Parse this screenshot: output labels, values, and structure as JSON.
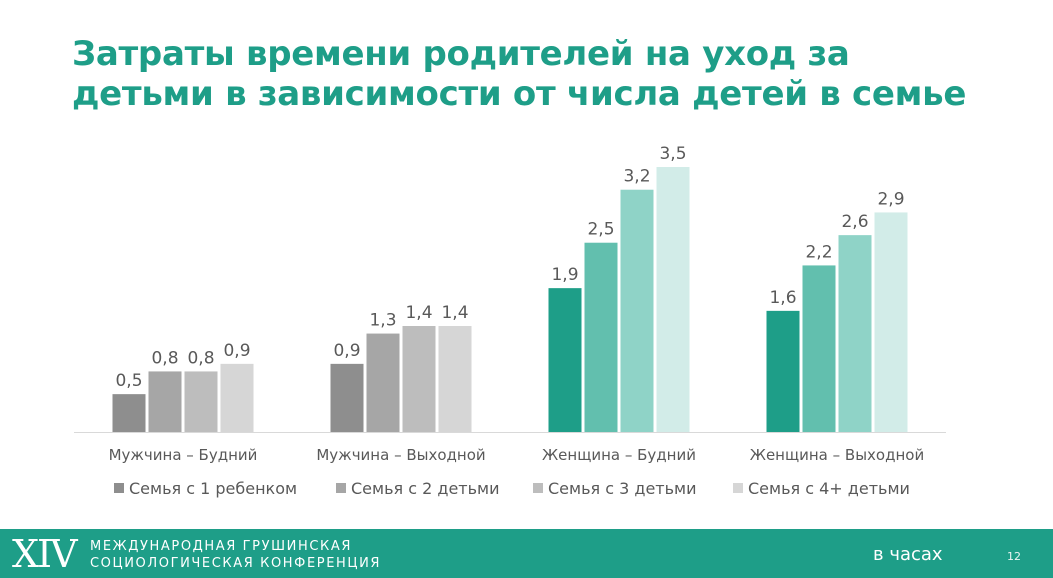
{
  "slide": {
    "title_line1": "Затраты времени родителей на уход за",
    "title_line2": "детьми в зависимости от числа детей в семье"
  },
  "footer": {
    "logo": "XIV",
    "org_line1": "Международная Грушинская",
    "org_line2": "социологическая конференция",
    "units": "в часах",
    "page": "12"
  },
  "chart_data": {
    "type": "bar",
    "title": "",
    "xlabel": "",
    "ylabel": "",
    "units": "часы",
    "ylim": [
      0,
      3.5
    ],
    "grid": false,
    "legend_position": "bottom",
    "categories": [
      "Мужчина – Будний",
      "Мужчина – Выходной",
      "Женщина – Будний",
      "Женщина – Выходной"
    ],
    "series": [
      {
        "name": "Семья с 1 ребенком",
        "values": [
          0.5,
          0.9,
          1.9,
          1.6
        ],
        "labels": [
          "0,5",
          "0,9",
          "1,9",
          "1,6"
        ]
      },
      {
        "name": "Семья с 2 детьми",
        "values": [
          0.8,
          1.3,
          2.5,
          2.2
        ],
        "labels": [
          "0,8",
          "1,3",
          "2,5",
          "2,2"
        ]
      },
      {
        "name": "Семья с 3 детьми",
        "values": [
          0.8,
          1.4,
          3.2,
          2.6
        ],
        "labels": [
          "0,8",
          "1,4",
          "3,2",
          "2,6"
        ]
      },
      {
        "name": "Семья с 4+ детьми",
        "values": [
          0.9,
          1.4,
          3.5,
          2.9
        ],
        "labels": [
          "0,9",
          "1,4",
          "3,5",
          "2,9"
        ]
      }
    ],
    "palettes": {
      "male": [
        "#8e8e8e",
        "#a6a6a6",
        "#bdbdbd",
        "#d6d6d6"
      ],
      "female": [
        "#1e9e88",
        "#62bfae",
        "#8fd3c7",
        "#d2ece8"
      ]
    },
    "legend_colors": [
      "#8e8e8e",
      "#a6a6a6",
      "#bdbdbd",
      "#d6d6d6"
    ],
    "label_color": "#595959",
    "axis_color": "#d9d9d9"
  }
}
